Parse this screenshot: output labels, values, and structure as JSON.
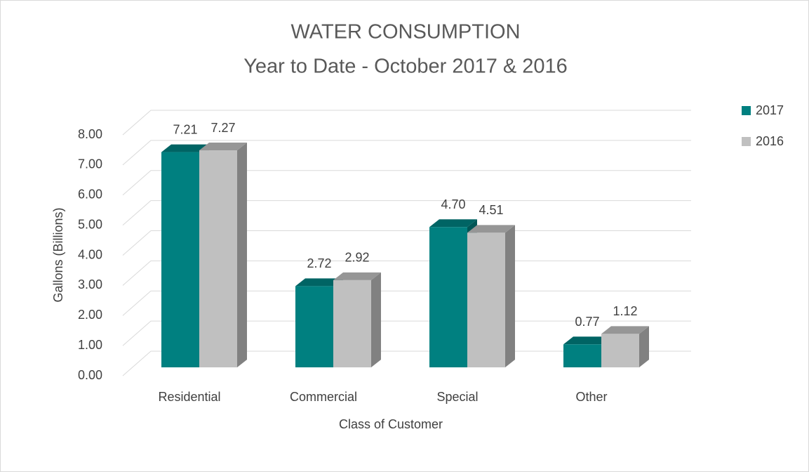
{
  "chart_data": {
    "type": "bar3d",
    "title": "WATER CONSUMPTION",
    "subtitle": "Year to Date - October 2017 & 2016",
    "x_label": "Class of Customer",
    "y_label": "Gallons (Billions)",
    "categories": [
      "Residential",
      "Commercial",
      "Special",
      "Other"
    ],
    "series": [
      {
        "name": "2017",
        "color": "#008080",
        "values": [
          7.21,
          2.72,
          4.7,
          0.77
        ],
        "value_labels": [
          "7.21",
          "2.72",
          "4.70",
          "0.77"
        ]
      },
      {
        "name": "2016",
        "color": "#c0c0c0",
        "values": [
          7.27,
          2.92,
          4.51,
          1.12
        ],
        "value_labels": [
          "7.27",
          "2.92",
          "4.51",
          "1.12"
        ]
      }
    ],
    "ylim": [
      0,
      8
    ],
    "yticks": [
      {
        "value": 0,
        "label": "0.00"
      },
      {
        "value": 1,
        "label": "1.00"
      },
      {
        "value": 2,
        "label": "2.00"
      },
      {
        "value": 3,
        "label": "3.00"
      },
      {
        "value": 4,
        "label": "4.00"
      },
      {
        "value": 5,
        "label": "5.00"
      },
      {
        "value": 6,
        "label": "6.00"
      },
      {
        "value": 7,
        "label": "7.00"
      },
      {
        "value": 8,
        "label": "8.00"
      }
    ],
    "grid": true,
    "legend": "right"
  }
}
